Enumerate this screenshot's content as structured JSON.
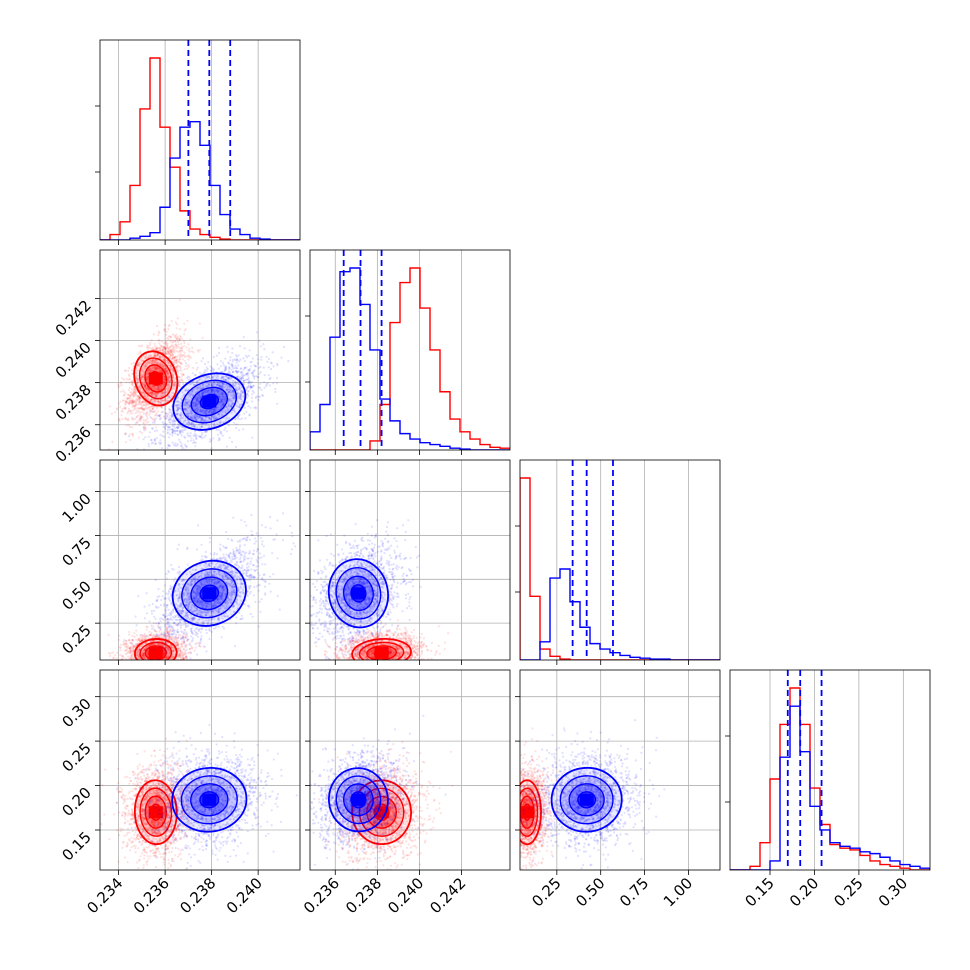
{
  "colors": {
    "red": "#ff0000",
    "blue": "#0000ff",
    "grid": "#b0b0b0",
    "frame": "#000000"
  },
  "chart_data": {
    "type": "corner",
    "parameters": [
      "",
      "",
      "",
      ""
    ],
    "ranges": [
      [
        0.2332,
        0.2418
      ],
      [
        0.2348,
        0.2443
      ],
      [
        0.04,
        1.18
      ],
      [
        0.105,
        0.33
      ]
    ],
    "ticks": [
      [
        0.234,
        0.236,
        0.238,
        0.24
      ],
      [
        0.236,
        0.238,
        0.24,
        0.242
      ],
      [
        0.25,
        0.5,
        0.75,
        1.0
      ],
      [
        0.15,
        0.2,
        0.25,
        0.3
      ]
    ],
    "tick_labels": [
      [
        "0.234",
        "0.236",
        "0.238",
        "0.240"
      ],
      [
        "0.236",
        "0.238",
        "0.240",
        "0.242"
      ],
      [
        "0.25",
        "0.50",
        "0.75",
        "1.00"
      ],
      [
        "0.15",
        "0.20",
        "0.25",
        "0.30"
      ]
    ],
    "y_tick_labels": {
      "1": [
        "0.236",
        "0.238",
        "0.240",
        "0.242"
      ],
      "2": [
        "0.25",
        "0.50",
        "0.75",
        "1.00"
      ],
      "3": [
        "0.15",
        "0.20",
        "0.25",
        "0.30"
      ]
    },
    "series": [
      {
        "color": "#ff0000",
        "mean": [
          0.2356,
          0.2382,
          0.08,
          0.17
        ],
        "sd": [
          0.00045,
          0.0007,
          0.04,
          0.018
        ],
        "corr": {
          "0-1": 0.5,
          "0-2": 0.1,
          "0-3": 0.05,
          "1-2": 0.1,
          "1-3": 0.1,
          "2-3": 0.0
        },
        "hist": [
          {
            "edges": [
              0.2332,
              0.2418
            ],
            "counts": [
              0,
              0.03,
              0.1,
              0.3,
              0.72,
              1.0,
              0.62,
              0.4,
              0.16,
              0.06,
              0.03,
              0.015,
              0.005,
              0,
              0,
              0,
              0,
              0,
              0,
              0
            ]
          },
          {
            "edges": [
              0.2348,
              0.2443
            ],
            "counts": [
              0,
              0,
              0,
              0,
              0,
              0,
              0.05,
              0.25,
              0.7,
              0.92,
              1.0,
              0.78,
              0.55,
              0.32,
              0.17,
              0.1,
              0.06,
              0.03,
              0.015,
              0.01
            ]
          },
          {
            "edges": [
              0.04,
              1.18
            ],
            "counts": [
              1.0,
              0.35,
              0.06,
              0.02,
              0.005,
              0,
              0,
              0,
              0,
              0,
              0,
              0,
              0,
              0,
              0,
              0,
              0,
              0,
              0,
              0
            ]
          },
          {
            "edges": [
              0.105,
              0.33
            ],
            "counts": [
              0,
              0,
              0.02,
              0.15,
              0.5,
              0.8,
              1.0,
              0.8,
              0.45,
              0.25,
              0.14,
              0.12,
              0.11,
              0.08,
              0.05,
              0.03,
              0.02,
              0.01,
              0,
              0
            ]
          }
        ]
      },
      {
        "color": "#0000ff",
        "mean": [
          0.2379,
          0.2371,
          0.42,
          0.184
        ],
        "sd": [
          0.0008,
          0.0007,
          0.1,
          0.018
        ],
        "corr": {
          "0-1": 0.6,
          "0-2": 0.6,
          "0-3": 0.15,
          "1-2": 0.3,
          "1-3": 0.2,
          "2-3": 0.1
        },
        "quantiles": [
          [
            0.237,
            0.2379,
            0.2388
          ],
          [
            0.2364,
            0.2372,
            0.2382
          ],
          [
            0.34,
            0.42,
            0.57
          ],
          [
            0.17,
            0.184,
            0.208
          ]
        ],
        "hist": [
          {
            "edges": [
              0.2332,
              0.2418
            ],
            "counts": [
              0,
              0,
              0,
              0.01,
              0.02,
              0.04,
              0.18,
              0.45,
              0.62,
              0.65,
              0.52,
              0.3,
              0.14,
              0.06,
              0.03,
              0.01,
              0.005,
              0,
              0,
              0
            ]
          },
          {
            "edges": [
              0.2348,
              0.2443
            ],
            "counts": [
              0.1,
              0.25,
              0.62,
              0.98,
              1.0,
              0.8,
              0.55,
              0.28,
              0.16,
              0.09,
              0.06,
              0.04,
              0.03,
              0.02,
              0.01,
              0.005,
              0,
              0,
              0,
              0
            ]
          },
          {
            "edges": [
              0.04,
              1.18
            ],
            "counts": [
              0,
              0,
              0.1,
              0.45,
              0.5,
              0.32,
              0.18,
              0.09,
              0.06,
              0.04,
              0.025,
              0.015,
              0.01,
              0.005,
              0.005,
              0,
              0,
              0,
              0,
              0
            ]
          },
          {
            "edges": [
              0.105,
              0.33
            ],
            "counts": [
              0,
              0,
              0,
              0,
              0.05,
              0.62,
              0.9,
              0.65,
              0.35,
              0.22,
              0.15,
              0.13,
              0.12,
              0.1,
              0.09,
              0.07,
              0.05,
              0.03,
              0.02,
              0.01
            ]
          }
        ]
      }
    ],
    "grid": true
  }
}
